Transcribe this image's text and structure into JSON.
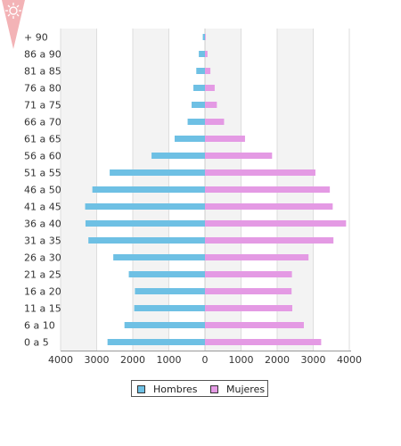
{
  "chart_data": {
    "type": "bar",
    "orientation": "horizontal-pyramid",
    "categories": [
      "0 a 5",
      "6 a 10",
      "11 a 15",
      "16 a 20",
      "21 a 25",
      "26 a 30",
      "31 a 35",
      "36 a 40",
      "41 a 45",
      "46 a 50",
      "51 a 55",
      "56 a 60",
      "61 a 65",
      "66 a 70",
      "71 a 75",
      "76 a 80",
      "81 a 85",
      "86 a 90",
      "+ 90"
    ],
    "series": [
      {
        "name": "Hombres",
        "color": "#6ec0e4",
        "values": [
          2700,
          2230,
          1960,
          1940,
          2110,
          2540,
          3230,
          3310,
          3320,
          3120,
          2640,
          1480,
          840,
          480,
          370,
          320,
          240,
          170,
          60
        ]
      },
      {
        "name": "Mujeres",
        "color": "#e49ae4",
        "values": [
          3220,
          2740,
          2420,
          2400,
          2410,
          2870,
          3560,
          3910,
          3540,
          3460,
          3060,
          1860,
          1110,
          530,
          330,
          270,
          150,
          70,
          20
        ]
      }
    ],
    "x_ticks": [
      "4000",
      "3000",
      "2000",
      "1000",
      "0",
      "1000",
      "2000",
      "3000",
      "4000"
    ],
    "xlim": [
      -4000,
      4000
    ],
    "grid": true,
    "legend": "bottom-center"
  },
  "colors": {
    "band": "#f3f3f3",
    "gridline": "#dedede",
    "axis": "#999999"
  },
  "badge_icon": "sun-icon"
}
